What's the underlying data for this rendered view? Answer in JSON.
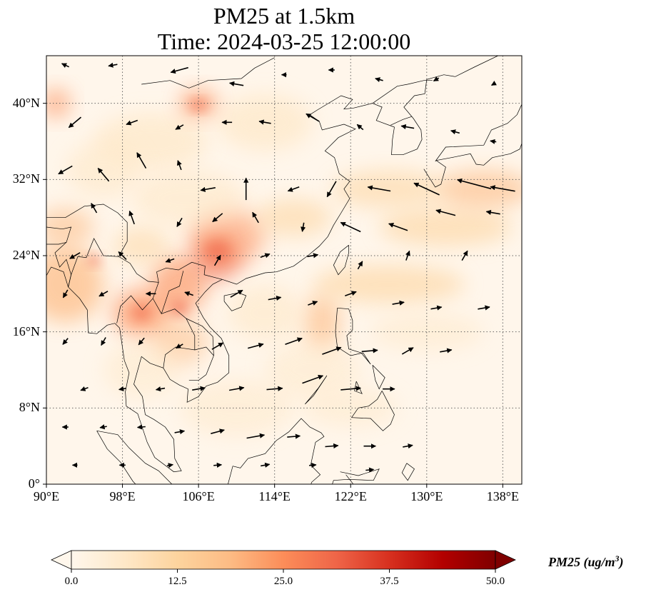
{
  "title": {
    "line1": "PM25 at 1.5km",
    "line2": "Time: 2024-03-25 12:00:00"
  },
  "map": {
    "variable": "PM25",
    "level": "1.5km",
    "lon_range": [
      90,
      140
    ],
    "lat_range": [
      0,
      45
    ],
    "lon_ticks": [
      "90°E",
      "98°E",
      "106°E",
      "114°E",
      "122°E",
      "130°E",
      "138°E"
    ],
    "lon_tick_values": [
      90,
      98,
      106,
      114,
      122,
      130,
      138
    ],
    "lat_ticks": [
      "0°",
      "8°N",
      "16°N",
      "24°N",
      "32°N",
      "40°N"
    ],
    "lat_tick_values": [
      0,
      8,
      16,
      24,
      32,
      40
    ],
    "gridlines": true,
    "colormap": "OrRd",
    "colors": [
      "#fff7ec",
      "#fee8c8",
      "#fdd49e",
      "#fdbb84",
      "#fc8d59",
      "#ef6548",
      "#d7301f",
      "#b30000",
      "#7f0000"
    ]
  },
  "colorbar": {
    "label_text": "PM25 (ug/m",
    "label_sup": "3",
    "label_close": ")",
    "ticks": [
      "0.0",
      "12.5",
      "25.0",
      "37.5",
      "50.0"
    ],
    "tick_values": [
      0,
      12.5,
      25,
      37.5,
      50
    ],
    "range": [
      0,
      50
    ],
    "extend": "both"
  }
}
